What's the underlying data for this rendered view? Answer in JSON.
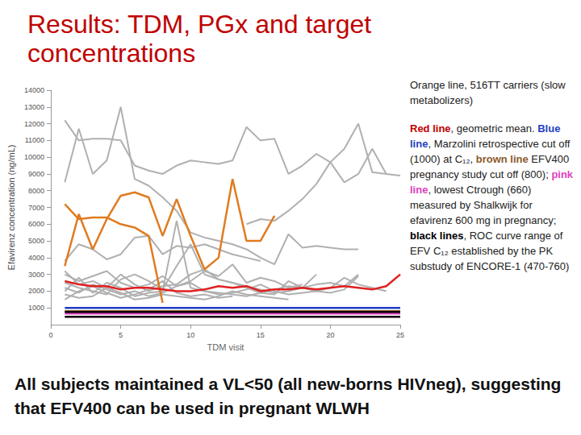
{
  "chart_data": {
    "type": "line",
    "title": "Results: TDM, PGx and target concentrations",
    "x_label": "TDM visit",
    "y_label": "Efavirenz concentration (ng/mL)",
    "xlim": [
      0,
      25
    ],
    "xticks": [
      0,
      5,
      10,
      15,
      20,
      25
    ],
    "ylim": [
      0,
      14000
    ],
    "yticks": [
      1000,
      2000,
      3000,
      4000,
      5000,
      6000,
      7000,
      8000,
      9000,
      10000,
      11000,
      12000,
      13000,
      14000
    ],
    "grid": false,
    "x": [
      1,
      2,
      3,
      4,
      5,
      6,
      7,
      8,
      9,
      10,
      11,
      12,
      13,
      14,
      15,
      16,
      17,
      18,
      19,
      20,
      21,
      22,
      23,
      24,
      25
    ],
    "series": [
      {
        "color": "#b0b0b0",
        "values": [
          12200,
          11000,
          11100,
          11100,
          11000,
          9500,
          9200,
          9000,
          9500,
          9800,
          9700,
          9600,
          9800,
          11800,
          11000,
          11100,
          9000,
          9500,
          10200,
          9700,
          8500,
          9000,
          10500,
          9000,
          8900
        ]
      },
      {
        "color": "#b0b0b0",
        "values": [
          8500,
          11700,
          9000,
          9800,
          13000,
          8700,
          8300,
          7600,
          6800,
          5500,
          5200,
          5000,
          4800,
          4500,
          4000,
          3600,
          5400,
          4600,
          4700,
          4600,
          4500,
          4500,
          null,
          null,
          null
        ]
      },
      {
        "color": "#b0b0b0",
        "values": [
          null,
          null,
          null,
          null,
          null,
          null,
          null,
          null,
          null,
          null,
          null,
          null,
          null,
          6000,
          6300,
          6200,
          6800,
          7500,
          8400,
          9700,
          10500,
          12000,
          9100,
          9000,
          null
        ]
      },
      {
        "color": "#b0b0b0",
        "values": [
          3800,
          4800,
          4500,
          3900,
          4200,
          5200,
          5300,
          4200,
          4700,
          4600,
          4800,
          4500,
          4200,
          4000,
          3800,
          null,
          null,
          null,
          null,
          null,
          null,
          null,
          null,
          null,
          null
        ]
      },
      {
        "color": "#b0b0b0",
        "values": [
          3000,
          2600,
          2900,
          3200,
          2500,
          2200,
          2400,
          2900,
          2300,
          2600,
          3200,
          2900,
          3600,
          2500,
          2800,
          2600,
          2200,
          2400,
          null,
          null,
          null,
          null,
          null,
          null,
          null
        ]
      },
      {
        "color": "#b0b0b0",
        "values": [
          2200,
          1900,
          2400,
          2100,
          1800,
          2000,
          1700,
          1900,
          2300,
          2500,
          2000,
          1800,
          1900,
          2100,
          2400,
          2000,
          1800,
          1900,
          2000,
          2200,
          2800,
          2400,
          2200,
          2000,
          null
        ]
      },
      {
        "color": "#b0b0b0",
        "values": [
          1800,
          1600,
          1700,
          2200,
          1900,
          1500,
          1600,
          1800,
          1700,
          1600,
          1500,
          1700,
          2000,
          1800,
          1700,
          1600,
          1500,
          null,
          null,
          null,
          null,
          null,
          null,
          null,
          null
        ]
      },
      {
        "color": "#b0b0b0",
        "values": [
          2500,
          2200,
          2000,
          1800,
          2700,
          3000,
          2600,
          2100,
          3500,
          4800,
          3000,
          2700,
          2500,
          2300,
          2100,
          1900,
          2000,
          2200,
          2400,
          2500,
          2300,
          3000,
          null,
          null,
          null
        ]
      },
      {
        "color": "#b0b0b0",
        "values": [
          1500,
          2000,
          2300,
          1900,
          1600,
          1800,
          2100,
          2600,
          1900,
          1700,
          1800,
          1600,
          1700,
          null,
          null,
          null,
          null,
          null,
          null,
          null,
          null,
          null,
          null,
          null,
          null
        ]
      },
      {
        "color": "#b0b0b0",
        "values": [
          2000,
          2800,
          1900,
          2500,
          2200,
          1700,
          1900,
          2000,
          6200,
          2200,
          2000,
          1900,
          1800,
          1700,
          1900,
          1800,
          2600,
          2200,
          2000,
          1900,
          2100,
          2900,
          null,
          null,
          null
        ]
      },
      {
        "color": "#b0b0b0",
        "values": [
          3200,
          2400,
          2600,
          2200,
          3000,
          2400,
          2000,
          2300,
          2400,
          3000,
          3300,
          2700,
          2500,
          2200,
          1900,
          2100,
          2300,
          2200,
          3000,
          null,
          null,
          null,
          null,
          null,
          null
        ]
      },
      {
        "color": "#e07b20",
        "values": [
          7200,
          6300,
          6400,
          6400,
          6000,
          5800,
          5300,
          1300,
          null,
          null,
          null,
          null,
          null,
          null,
          null,
          null,
          null,
          null,
          null,
          null,
          null,
          null,
          null,
          null,
          null
        ]
      },
      {
        "color": "#e07b20",
        "values": [
          3500,
          6600,
          4500,
          6300,
          7700,
          7900,
          7600,
          5300,
          7500,
          5300,
          3300,
          4000,
          8700,
          5000,
          5000,
          6500,
          null,
          null,
          null,
          null,
          null,
          null,
          null,
          null,
          null
        ]
      },
      {
        "color": "#e02020",
        "values": [
          2600,
          2400,
          2300,
          2300,
          2100,
          2200,
          2200,
          2100,
          2000,
          2000,
          2100,
          2300,
          2200,
          2300,
          2000,
          2100,
          2100,
          2200,
          2100,
          2200,
          2300,
          2200,
          2100,
          2300,
          3000
        ]
      },
      {
        "color": "#1f3fbf",
        "values": [
          1000,
          1000,
          1000,
          1000,
          1000,
          1000,
          1000,
          1000,
          1000,
          1000,
          1000,
          1000,
          1000,
          1000,
          1000,
          1000,
          1000,
          1000,
          1000,
          1000,
          1000,
          1000,
          1000,
          1000,
          1000
        ]
      },
      {
        "color": "#8b5a2b",
        "values": [
          800,
          800,
          800,
          800,
          800,
          800,
          800,
          800,
          800,
          800,
          800,
          800,
          800,
          800,
          800,
          800,
          800,
          800,
          800,
          800,
          800,
          800,
          800,
          800,
          800
        ]
      },
      {
        "color": "#e040c0",
        "values": [
          660,
          660,
          660,
          660,
          660,
          660,
          660,
          660,
          660,
          660,
          660,
          660,
          660,
          660,
          660,
          660,
          660,
          660,
          660,
          660,
          660,
          660,
          660,
          660,
          660
        ]
      },
      {
        "color": "#000000",
        "values": [
          760,
          760,
          760,
          760,
          760,
          760,
          760,
          760,
          760,
          760,
          760,
          760,
          760,
          760,
          760,
          760,
          760,
          760,
          760,
          760,
          760,
          760,
          760,
          760,
          760
        ]
      },
      {
        "color": "#000000",
        "values": [
          470,
          470,
          470,
          470,
          470,
          470,
          470,
          470,
          470,
          470,
          470,
          470,
          470,
          470,
          470,
          470,
          470,
          470,
          470,
          470,
          470,
          470,
          470,
          470,
          470
        ]
      }
    ],
    "annotations": [
      [
        {
          "text": "Orange line, 516TT carriers (slow metabolizers)"
        }
      ],
      [
        {
          "text": "Red line",
          "color": "#c00000"
        },
        {
          "text": ", geometric mean. "
        },
        {
          "text": "Blue line",
          "color": "#1f3fbf"
        },
        {
          "text": ", Marzolini retrospective cut off (1000) at C₁₂, "
        },
        {
          "text": "brown line",
          "color": "#8b5a2b"
        },
        {
          "text": " EFV400 pregnancy study cut off (800); "
        },
        {
          "text": "pink line",
          "color": "#e040c0"
        },
        {
          "text": ", lowest Ctrough (660) measured by Shalkwijk for efavirenz 600 mg in pregnancy; "
        },
        {
          "text": "black lines",
          "color": "#000000"
        },
        {
          "text": ", ROC curve range of EFV C₁₂ established by the PK substudy of ENCORE-1 (470-760)"
        }
      ]
    ],
    "footer": "All subjects maintained a VL<50 (all new-borns HIVneg), suggesting that EFV400 can be used in pregnant WLWH"
  }
}
